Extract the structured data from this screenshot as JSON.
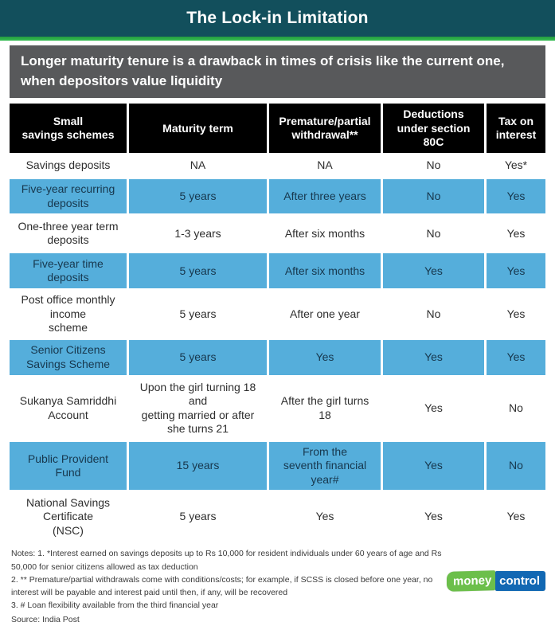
{
  "title": "The Lock-in Limitation",
  "subtitle": "Longer maturity tenure is a drawback in times of crisis like the current one, when depositors value liquidity",
  "chart_data": {
    "type": "table",
    "title": "The Lock-in Limitation",
    "columns": [
      "Small\nsavings schemes",
      "Maturity term",
      "Premature/partial\nwithdrawal**",
      "Deductions\nunder section\n80C",
      "Tax on\ninterest"
    ],
    "rows": [
      [
        "Savings deposits",
        "NA",
        "NA",
        "No",
        "Yes*"
      ],
      [
        "Five-year recurring\ndeposits",
        "5 years",
        "After three years",
        "No",
        "Yes"
      ],
      [
        "One-three year term\ndeposits",
        "1-3 years",
        "After six months",
        "No",
        "Yes"
      ],
      [
        "Five-year time\ndeposits",
        "5 years",
        "After six months",
        "Yes",
        "Yes"
      ],
      [
        "Post office monthly\nincome\nscheme",
        "5 years",
        "After one year",
        "No",
        "Yes"
      ],
      [
        "Senior Citizens\nSavings Scheme",
        "5 years",
        "Yes",
        "Yes",
        "Yes"
      ],
      [
        "Sukanya Samriddhi\nAccount",
        "Upon the girl turning 18\nand\ngetting married or after\nshe turns 21",
        "After the girl turns\n18",
        "Yes",
        "No"
      ],
      [
        "Public Provident\nFund",
        "15 years",
        "From the\nseventh financial\nyear#",
        "Yes",
        "No"
      ],
      [
        "National Savings\nCertificate\n(NSC)",
        "5 years",
        "Yes",
        "Yes",
        "Yes"
      ]
    ],
    "highlighted_row_indices": [
      1,
      3,
      5,
      7
    ],
    "legend_position": "none",
    "grid": false
  },
  "notes": [
    "Notes: 1. *Interest earned on savings deposits up to Rs 10,000 for resident individuals under 60 years of age and Rs 50,000 for senior citizens allowed as tax deduction",
    "2. ** Premature/partial withdrawals come with conditions/costs; for example, if SCSS is closed before one year, no interest will be payable and interest paid until then, if any, will be recovered",
    "3. # Loan flexibility available from the third financial year"
  ],
  "source": "Source: India Post",
  "logo": {
    "green_text": "money",
    "blue_text": "control"
  },
  "colors": {
    "title_bar_teal": "#124f5c",
    "accent_green": "#2db44b",
    "subtitle_gray": "#58595b",
    "table_header_black": "#000000",
    "row_highlight_blue": "#55aedb",
    "highlight_text_navy": "#17374d",
    "logo_green": "#6cbf4b",
    "logo_blue": "#1268b3"
  }
}
